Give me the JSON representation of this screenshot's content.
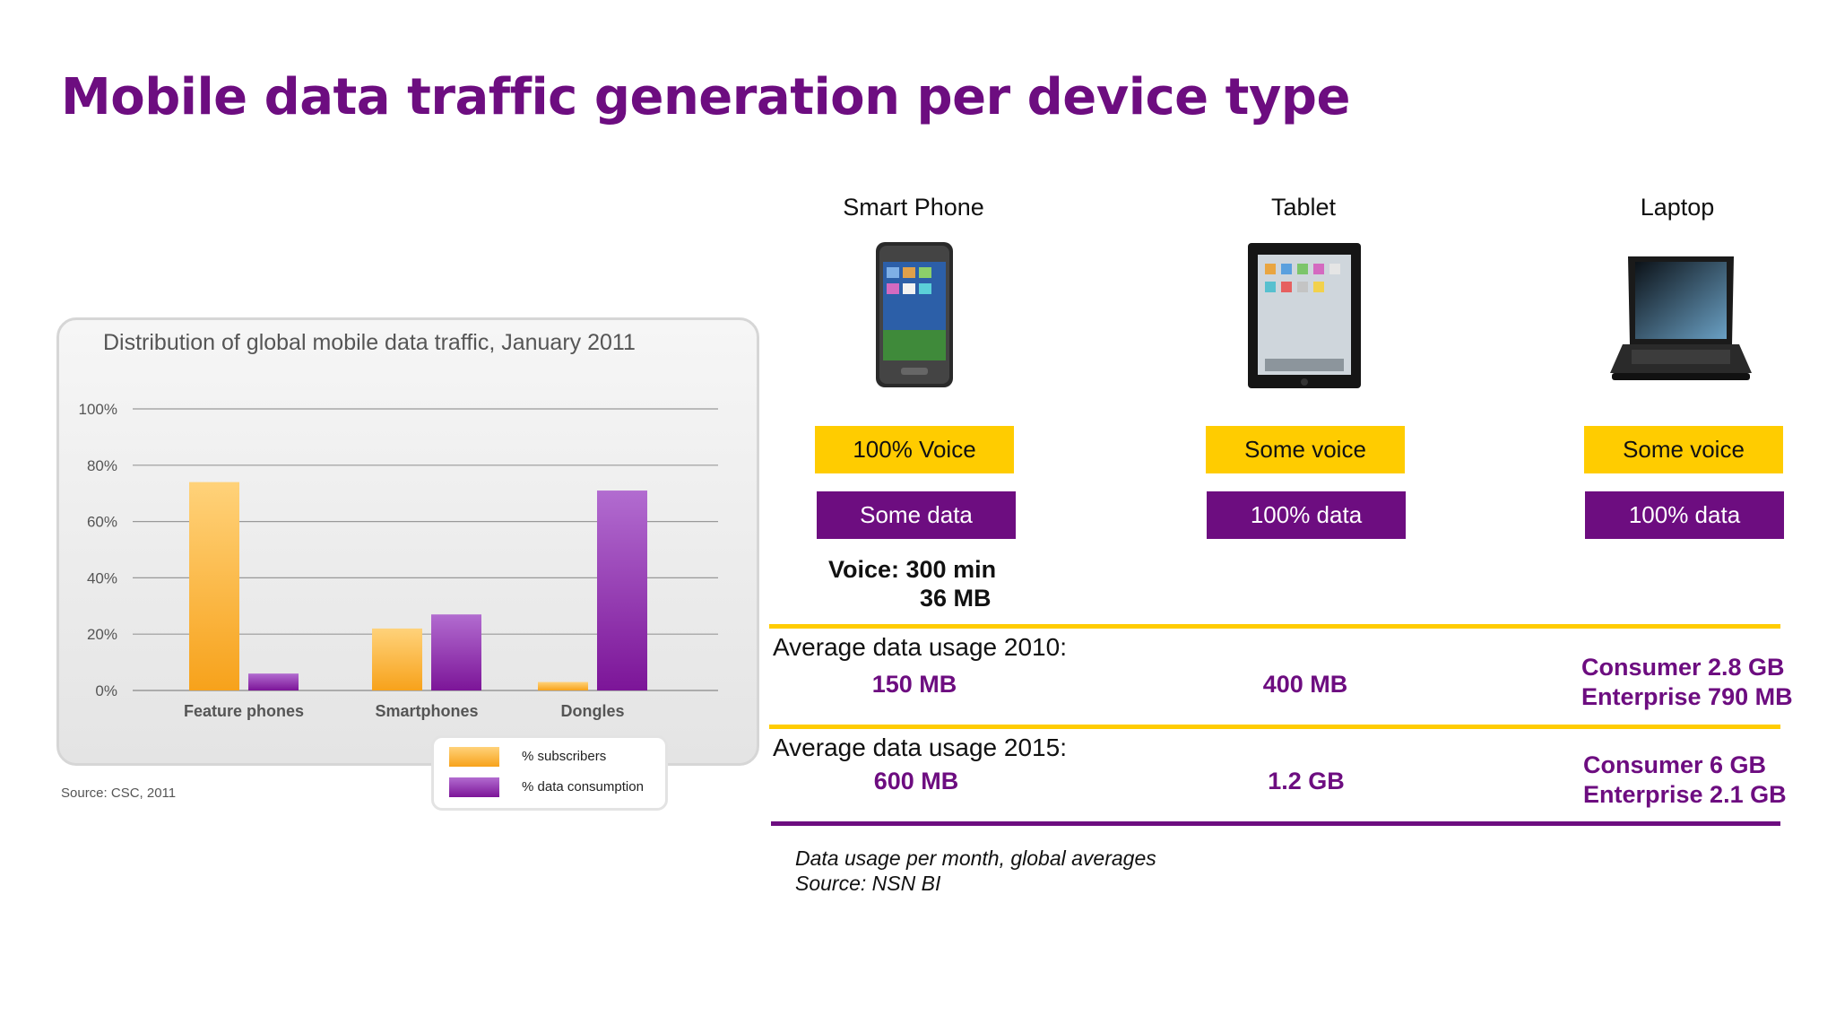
{
  "slide": {
    "title": "Mobile data traffic generation per device type"
  },
  "chart_data": {
    "type": "bar",
    "title": "Distribution of global mobile data traffic, January 2011",
    "categories": [
      "Feature phones",
      "Smartphones",
      "Dongles"
    ],
    "series": [
      {
        "name": "% subscribers",
        "values": [
          74,
          22,
          3
        ]
      },
      {
        "name": "% data consumption",
        "values": [
          6,
          27,
          71
        ]
      }
    ],
    "yticks": [
      "0%",
      "20%",
      "40%",
      "60%",
      "80%",
      "100%"
    ],
    "ylim": [
      0,
      100
    ],
    "xlabel": "",
    "ylabel": "",
    "grid": true,
    "legend_position": "bottom-right",
    "source": "Source: CSC, 2011",
    "colors": {
      "subscribers": "#fbb13a",
      "data_consumption": "#8e2fa8"
    }
  },
  "devices": [
    {
      "name": "Smart Phone",
      "icon": "smartphone-icon",
      "voice_label": "100% Voice",
      "data_label": "Some data",
      "usage_2010": "150 MB",
      "usage_2015": "600 MB"
    },
    {
      "name": "Tablet",
      "icon": "tablet-icon",
      "voice_label": "Some voice",
      "data_label": "100% data",
      "usage_2010": "400 MB",
      "usage_2015": "1.2 GB"
    },
    {
      "name": "Laptop",
      "icon": "laptop-icon",
      "voice_label": "Some voice",
      "data_label": "100% data",
      "usage_2010_consumer": "Consumer 2.8 GB",
      "usage_2010_enterprise": "Enterprise 790 MB",
      "usage_2015_consumer": "Consumer 6 GB",
      "usage_2015_enterprise": "Enterprise 2.1 GB"
    }
  ],
  "smartphone_note": {
    "voice": "Voice: 300 min",
    "data": "36 MB"
  },
  "rows": {
    "label_2010": "Average data usage 2010:",
    "label_2015": "Average data usage 2015:"
  },
  "footnote": {
    "line1": "Data usage per month,  global averages",
    "line2": "Source: NSN BI"
  },
  "colors": {
    "accent_purple": "#6d0d80",
    "accent_yellow": "#ffcc00"
  }
}
